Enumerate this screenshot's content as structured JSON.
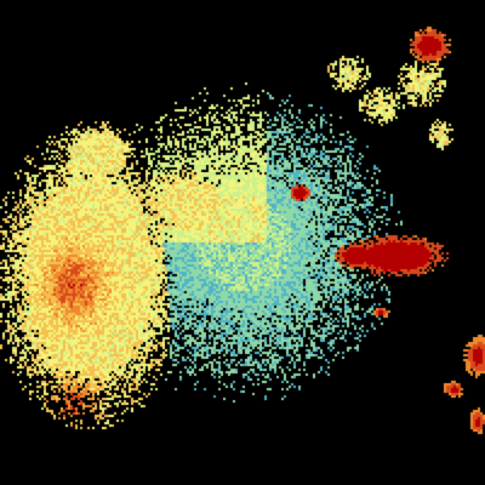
{
  "radar_image": {
    "background": "#000000",
    "palette": [
      "#1565a8",
      "#2a8cc0",
      "#4fb4c8",
      "#8fd8a8",
      "#cdf08a",
      "#f4f47c",
      "#f5c050",
      "#ee8a2c",
      "#d84a1c",
      "#b40000"
    ],
    "features": [
      {
        "name": "central-clutter",
        "level": 0.25
      },
      {
        "name": "western-rain-area",
        "level": 0.55
      },
      {
        "name": "eastern-storm-cell",
        "level": 0.95
      },
      {
        "name": "northeastern-storm-cell",
        "level": 0.9
      },
      {
        "name": "small-central-cell",
        "level": 0.95
      },
      {
        "name": "southeastern-cells",
        "level": 0.85
      }
    ]
  }
}
